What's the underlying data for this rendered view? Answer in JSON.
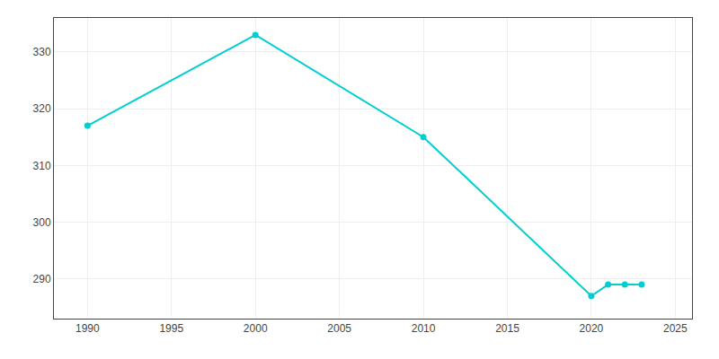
{
  "chart_data": {
    "type": "line",
    "x": [
      1990,
      2000,
      2010,
      2020,
      2021,
      2022,
      2023
    ],
    "values": [
      317,
      333,
      315,
      287,
      289,
      289,
      289
    ],
    "color": "#00CED1",
    "marker": "circle",
    "line_style": "solid",
    "xlim": [
      1988,
      2026
    ],
    "ylim": [
      283,
      336
    ],
    "xticks": [
      1990,
      1995,
      2000,
      2005,
      2010,
      2015,
      2020,
      2025
    ],
    "yticks": [
      290,
      300,
      310,
      320,
      330
    ],
    "grid": true
  }
}
